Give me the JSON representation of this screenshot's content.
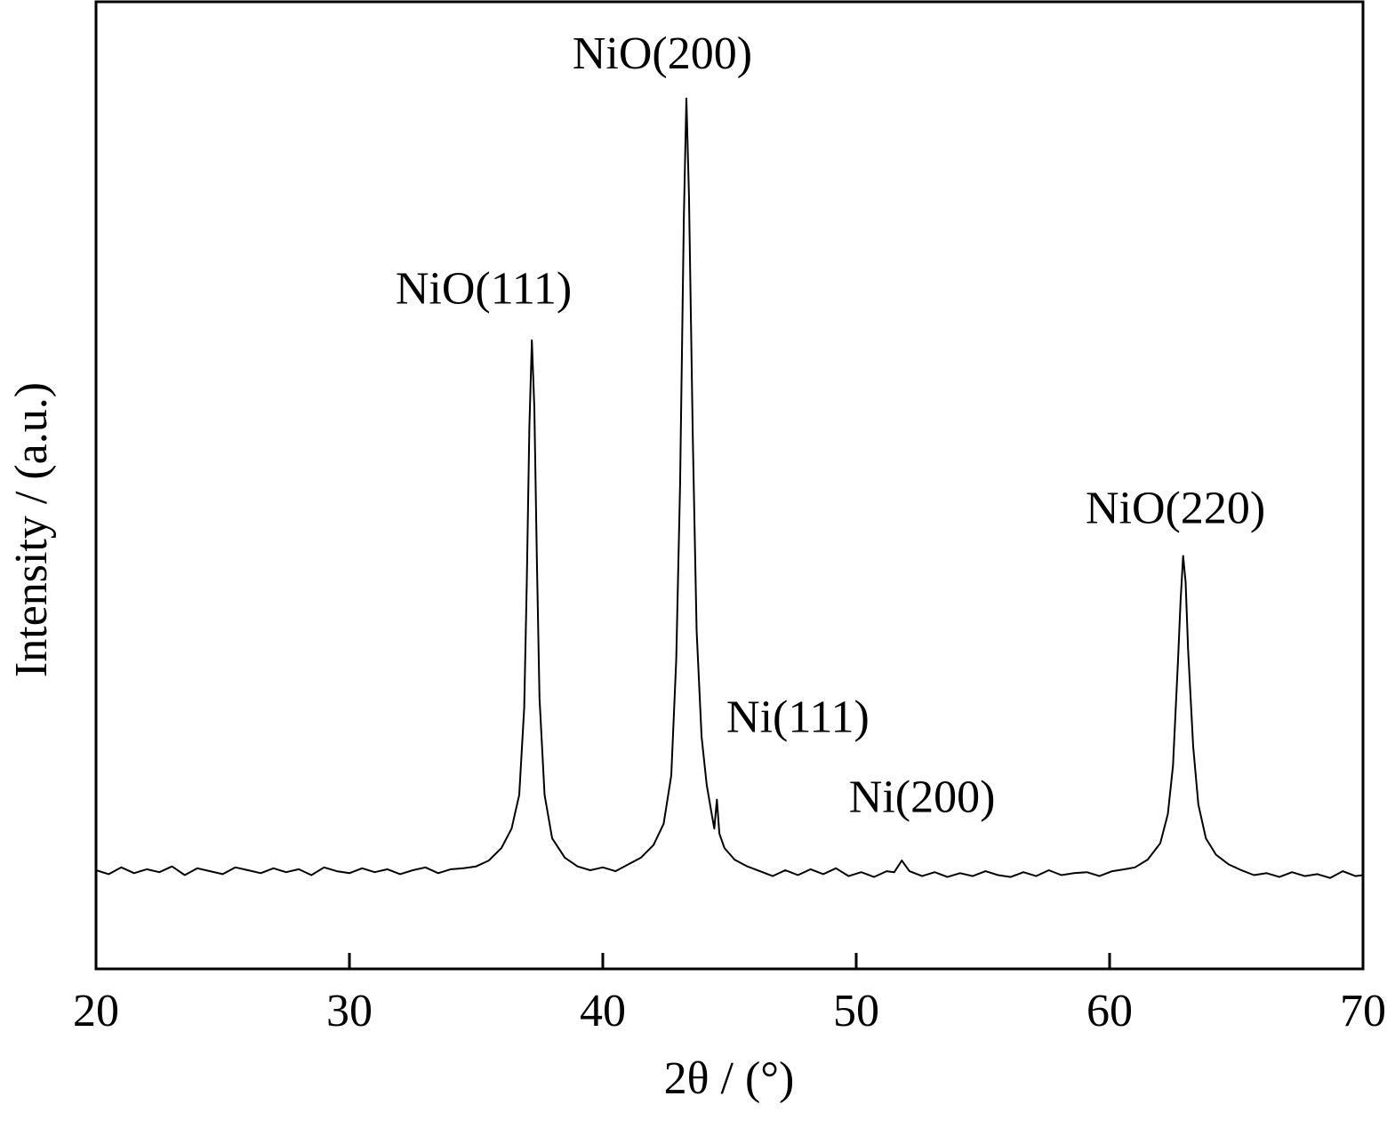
{
  "chart_data": {
    "type": "line",
    "x_label": "2θ / (°)",
    "y_label": "Intensity / (a.u.)",
    "color": "#000000",
    "xlim": [
      20,
      70
    ],
    "ylim": [
      0,
      100
    ],
    "xticks": [
      20,
      30,
      40,
      50,
      60,
      70
    ],
    "x": [
      20,
      20.5,
      21,
      21.5,
      22,
      22.5,
      23,
      23.5,
      24,
      24.5,
      25,
      25.5,
      26,
      26.5,
      27,
      27.5,
      28,
      28.5,
      29,
      29.5,
      30,
      30.5,
      31,
      31.5,
      32,
      32.5,
      33,
      33.5,
      34,
      34.5,
      35,
      35.5,
      36,
      36.4,
      36.7,
      36.9,
      37,
      37.1,
      37.2,
      37.3,
      37.4,
      37.5,
      37.7,
      38,
      38.5,
      39,
      39.5,
      40,
      40.5,
      41,
      41.5,
      42,
      42.4,
      42.7,
      42.9,
      43.05,
      43.2,
      43.3,
      43.4,
      43.55,
      43.7,
      43.9,
      44.1,
      44.3,
      44.4,
      44.5,
      44.6,
      44.8,
      45.2,
      45.7,
      46.2,
      46.7,
      47.2,
      47.7,
      48.2,
      48.7,
      49.2,
      49.7,
      50.2,
      50.7,
      51.2,
      51.5,
      51.8,
      52.1,
      52.6,
      53.1,
      53.6,
      54.1,
      54.6,
      55.1,
      55.6,
      56.1,
      56.6,
      57.1,
      57.6,
      58.1,
      58.6,
      59.1,
      59.6,
      60.1,
      60.6,
      61,
      61.5,
      62,
      62.3,
      62.5,
      62.7,
      62.8,
      62.9,
      63,
      63.1,
      63.3,
      63.5,
      63.8,
      64.2,
      64.7,
      65.2,
      65.7,
      66.2,
      66.7,
      67.2,
      67.7,
      68.2,
      68.7,
      69.2,
      69.7,
      70
    ],
    "values": [
      10.2,
      9.8,
      10.5,
      9.9,
      10.3,
      10.0,
      10.6,
      9.7,
      10.4,
      10.1,
      9.8,
      10.5,
      10.2,
      9.9,
      10.4,
      10.0,
      10.3,
      9.7,
      10.5,
      10.1,
      9.9,
      10.4,
      10.0,
      10.3,
      9.8,
      10.2,
      10.5,
      9.9,
      10.3,
      10.4,
      10.6,
      11.2,
      12.5,
      14.5,
      18,
      27,
      40,
      56,
      65,
      58,
      42,
      28,
      18,
      13.5,
      11.5,
      10.6,
      10.2,
      10.5,
      10.1,
      10.8,
      11.5,
      12.8,
      15,
      20,
      32,
      50,
      78,
      90,
      80,
      55,
      35,
      24,
      19,
      16,
      14.5,
      17.5,
      14,
      12.5,
      11.3,
      10.6,
      10.1,
      9.6,
      10.2,
      9.7,
      10.3,
      9.8,
      10.4,
      9.6,
      10.0,
      9.5,
      10.1,
      10.0,
      11.2,
      10.1,
      9.6,
      10.0,
      9.5,
      9.9,
      9.6,
      10.1,
      9.7,
      9.5,
      10.0,
      9.6,
      10.2,
      9.7,
      9.9,
      10.0,
      9.6,
      10.1,
      10.3,
      10.5,
      11.3,
      13,
      16,
      21,
      32,
      38,
      42.7,
      40,
      33,
      23,
      17,
      13.5,
      11.8,
      10.8,
      10.2,
      9.7,
      9.9,
      9.5,
      10.0,
      9.6,
      9.8,
      9.4,
      10.1,
      9.6,
      9.7
    ],
    "annotations": [
      {
        "text": "NiO(111)",
        "x": 35.3,
        "y": 69.9
      },
      {
        "text": "NiO(200)",
        "x": 42.35,
        "y": 94.2
      },
      {
        "text": "Ni(111)",
        "x": 47.7,
        "y": 25.6
      },
      {
        "text": "Ni(200)",
        "x": 52.6,
        "y": 17.3
      },
      {
        "text": "NiO(220)",
        "x": 62.6,
        "y": 47.2
      }
    ]
  }
}
